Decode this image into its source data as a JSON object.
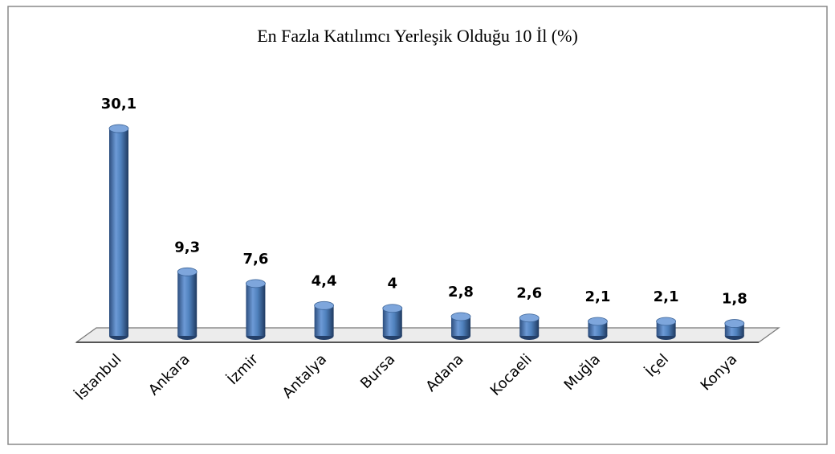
{
  "chart_data": {
    "type": "bar",
    "title": "En Fazla Katılımcı Yerleşik Olduğu 10 İl (%)",
    "categories": [
      "İstanbul",
      "Ankara",
      "İzmir",
      "Antalya",
      "Bursa",
      "Adana",
      "Kocaeli",
      "Muğla",
      "İçel",
      "Konya"
    ],
    "values": [
      30.1,
      9.3,
      7.6,
      4.4,
      4,
      2.8,
      2.6,
      2.1,
      2.1,
      1.8
    ],
    "value_labels": [
      "30,1",
      "9,3",
      "7,6",
      "4,4",
      "4",
      "2,8",
      "2,6",
      "2,1",
      "2,1",
      "1,8"
    ],
    "color": "#4f81bd"
  }
}
